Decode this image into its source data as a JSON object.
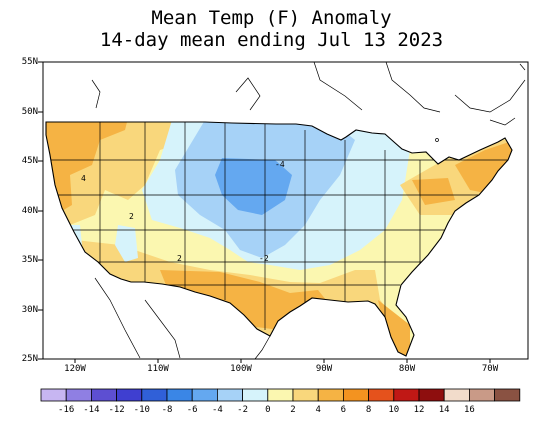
{
  "title_line1": "Mean Temp (F) Anomaly",
  "title_line2": "14-day mean ending Jul 13 2023",
  "lat_labels": [
    "55N",
    "50N",
    "45N",
    "40N",
    "35N",
    "30N",
    "25N"
  ],
  "lon_labels": [
    "120W",
    "110W",
    "100W",
    "90W",
    "80W",
    "70W"
  ],
  "contour_labels": [
    "4",
    "2",
    "2",
    "-4",
    "-2"
  ],
  "colorbar": {
    "labels": [
      "-16",
      "-14",
      "-12",
      "-10",
      "-8",
      "-6",
      "-4",
      "-2",
      "0",
      "2",
      "4",
      "6",
      "8",
      "10",
      "12",
      "14",
      "16"
    ],
    "colors": [
      "#c7b6f2",
      "#8f7fe3",
      "#5d4fd2",
      "#3f3fd0",
      "#3060d8",
      "#3a86e6",
      "#64a8f0",
      "#a6d2f7",
      "#d6f3fb",
      "#fbf7b0",
      "#f9d77c",
      "#f5b344",
      "#f39320",
      "#e5521c",
      "#c01815",
      "#8e0e0e",
      "#f2dccb",
      "#c99a87",
      "#8a5242"
    ]
  },
  "colors": {
    "frame": "#000000",
    "land_outside": "#ffffff"
  }
}
